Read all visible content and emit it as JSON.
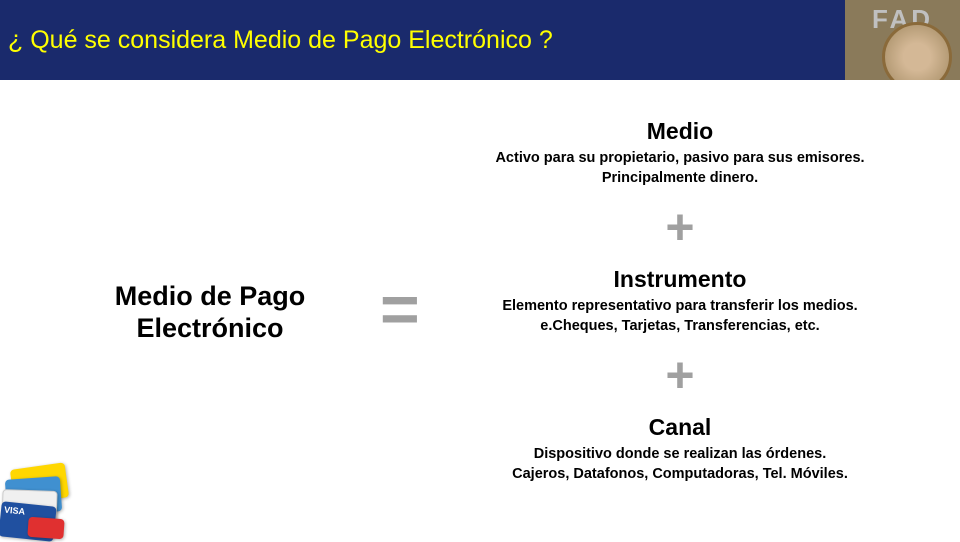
{
  "header": {
    "title": "¿ Qué se considera Medio de Pago Electrónico ?",
    "logo_text": "FAD",
    "bg_color": "#1a2a6c",
    "title_color": "#ffff00"
  },
  "equation": {
    "left": {
      "title_line1": "Medio de Pago",
      "title_line2": "Electrónico"
    },
    "equals_symbol": "=",
    "plus_symbol": "+",
    "symbol_color": "#a0a0a0",
    "terms": [
      {
        "title": "Medio",
        "desc_line1": "Activo para su propietario, pasivo para sus emisores.",
        "desc_line2": "Principalmente dinero."
      },
      {
        "title": "Instrumento",
        "desc_line1": "Elemento representativo para transferir los medios.",
        "desc_line2": "e.Cheques, Tarjetas, Transferencias, etc."
      },
      {
        "title": "Canal",
        "desc_line1": "Dispositivo donde se realizan las órdenes.",
        "desc_line2": "Cajeros, Datafonos, Computadoras, Tel. Móviles."
      }
    ]
  },
  "decor": {
    "visa_label": "VISA"
  }
}
